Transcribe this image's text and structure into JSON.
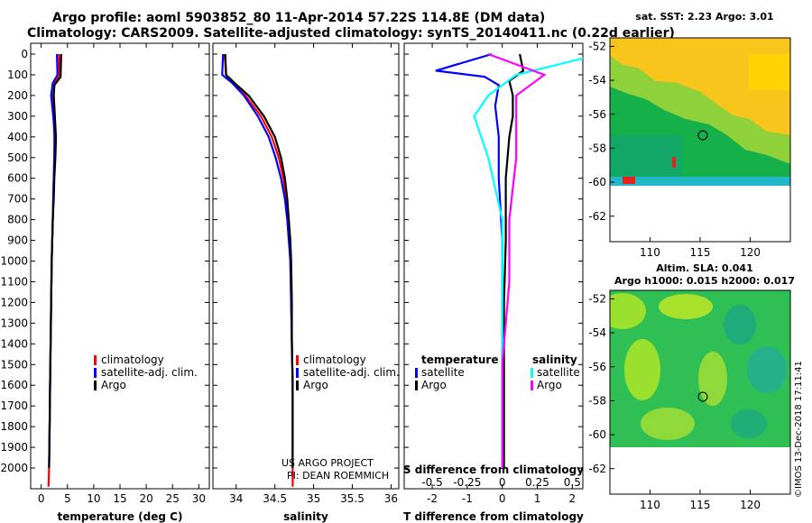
{
  "title": {
    "line1": "Argo profile: aoml 5903852_80 11-Apr-2014 57.22S 114.8E (DM data)",
    "line2": "Climatology: CARS2009. Satellite-adjusted climatology: synTS_20140411.nc (0.22d earlier)"
  },
  "colors": {
    "climatology": "#ff0000",
    "satellite": "#0000ff",
    "argo": "#000000",
    "sal_satellite": "#00ffff",
    "sal_argo": "#ff00ff"
  },
  "legend": {
    "climatology": "climatology",
    "satellite_adj": "satellite-adj. clim.",
    "argo": "Argo"
  },
  "diff_legend": {
    "t_head": "temperature",
    "s_head": "salinity",
    "satellite": "satellite",
    "argo": "Argo"
  },
  "credit": {
    "line1": "US ARGO PROJECT",
    "line2": "PI: DEAN ROEMMICH"
  },
  "watermark": "©IMOS 13-Dec-2018 17:11:41",
  "chart_data": [
    {
      "type": "line",
      "name": "temperature",
      "xlabel": "temperature (deg C)",
      "xlim": [
        -2,
        32
      ],
      "xticks": [
        0,
        5,
        10,
        15,
        20,
        25,
        30
      ],
      "ylim": [
        0,
        2100
      ],
      "yticks": [
        0,
        100,
        200,
        300,
        400,
        500,
        600,
        700,
        800,
        900,
        1000,
        1100,
        1200,
        1300,
        1400,
        1500,
        1600,
        1700,
        1800,
        1900,
        2000
      ],
      "series": [
        {
          "name": "climatology",
          "x": [
            3.4,
            3.4,
            2.6,
            2.3,
            2.4,
            2.5,
            2.5,
            2.4,
            2.3,
            2.2,
            2.1,
            2.0,
            1.9,
            1.8,
            1.7,
            1.6,
            1.5,
            1.4
          ],
          "y": [
            0,
            100,
            140,
            200,
            300,
            400,
            500,
            600,
            700,
            800,
            900,
            1000,
            1200,
            1400,
            1600,
            1800,
            2000,
            2090
          ]
        },
        {
          "name": "satellite-adj. clim.",
          "x": [
            3.0,
            3.1,
            2.2,
            1.9,
            2.3,
            2.6,
            2.5,
            2.4,
            2.3,
            2.2,
            2.1,
            2.0,
            1.9,
            1.8,
            1.7,
            1.6,
            1.5
          ],
          "y": [
            0,
            100,
            140,
            200,
            300,
            400,
            500,
            600,
            700,
            800,
            900,
            1000,
            1200,
            1400,
            1600,
            1800,
            2000
          ]
        },
        {
          "name": "Argo",
          "x": [
            3.8,
            3.7,
            2.5,
            2.4,
            2.6,
            2.8,
            2.7,
            2.5,
            2.4,
            2.2,
            2.1,
            2.0,
            1.9,
            1.8,
            1.7,
            1.6,
            1.5
          ],
          "y": [
            0,
            110,
            150,
            200,
            300,
            400,
            500,
            600,
            700,
            800,
            900,
            1000,
            1200,
            1400,
            1600,
            1800,
            2000
          ]
        }
      ]
    },
    {
      "type": "line",
      "name": "salinity",
      "xlabel": "salinity",
      "xlim": [
        33.7,
        36.1
      ],
      "xticks": [
        34,
        34.5,
        35,
        35.5,
        36
      ],
      "ylim": [
        0,
        2100
      ],
      "series": [
        {
          "name": "climatology",
          "x": [
            33.85,
            33.87,
            33.95,
            34.12,
            34.32,
            34.46,
            34.55,
            34.61,
            34.65,
            34.68,
            34.69,
            34.7,
            34.71,
            34.72,
            34.73,
            34.73,
            34.73,
            34.73
          ],
          "y": [
            0,
            100,
            140,
            200,
            300,
            400,
            500,
            600,
            700,
            800,
            900,
            1000,
            1200,
            1400,
            1600,
            1800,
            2000,
            2090
          ]
        },
        {
          "name": "satellite-adj. clim.",
          "x": [
            33.83,
            33.82,
            33.95,
            34.1,
            34.28,
            34.42,
            34.51,
            34.58,
            34.63,
            34.66,
            34.68,
            34.7,
            34.71,
            34.72,
            34.73,
            34.73,
            34.73
          ],
          "y": [
            0,
            100,
            140,
            200,
            300,
            400,
            500,
            600,
            700,
            800,
            900,
            1000,
            1200,
            1400,
            1600,
            1800,
            2000
          ]
        },
        {
          "name": "Argo",
          "x": [
            33.86,
            33.87,
            33.98,
            34.16,
            34.36,
            34.5,
            34.58,
            34.63,
            34.66,
            34.68,
            34.7,
            34.71,
            34.72,
            34.72,
            34.73,
            34.73,
            34.73
          ],
          "y": [
            0,
            100,
            140,
            200,
            300,
            400,
            500,
            600,
            700,
            800,
            900,
            1000,
            1200,
            1400,
            1600,
            1800,
            2000
          ]
        }
      ]
    },
    {
      "type": "line",
      "name": "difference from climatology",
      "xlabel": "T difference from climatology",
      "xlim": [
        -2.8,
        2.3
      ],
      "xticks": [
        -2,
        -1,
        0,
        1,
        2
      ],
      "xticklabels": [
        "-2",
        "-1",
        "0",
        "1",
        "2"
      ],
      "secondary_xlabel": "S difference from climatology",
      "secondary_xticks": [
        -0.5,
        -0.25,
        0,
        0.25,
        0.5
      ],
      "secondary_xticklabels": [
        "-0.5",
        "-0.25",
        "0",
        "0.25",
        "0.5"
      ],
      "secondary_scale": 4,
      "ylim": [
        0,
        2100
      ],
      "series": [
        {
          "name": "T satellite",
          "x": [
            -0.3,
            -1.9,
            -0.5,
            -0.1,
            -0.2,
            -0.1,
            -0.1,
            0,
            0,
            0,
            0,
            0
          ],
          "y": [
            0,
            80,
            110,
            150,
            250,
            400,
            600,
            900,
            1200,
            1500,
            1800,
            2000
          ]
        },
        {
          "name": "T Argo",
          "x": [
            0.5,
            0.6,
            0.2,
            0.3,
            0.3,
            0.2,
            0.1,
            0.1,
            0.05,
            0.05,
            0.05,
            0.05
          ],
          "y": [
            0,
            80,
            130,
            200,
            300,
            400,
            600,
            900,
            1200,
            1500,
            1800,
            2000
          ]
        },
        {
          "name": "S satellite",
          "x": [
            0.7,
            0.1,
            -0.1,
            -0.2,
            -0.1,
            0,
            0,
            0,
            0
          ],
          "y": [
            0,
            100,
            200,
            300,
            500,
            800,
            1100,
            1500,
            2000
          ]
        },
        {
          "name": "S Argo",
          "x": [
            -0.1,
            0.3,
            0.1,
            0.1,
            0.1,
            0.05,
            0.05,
            0,
            0
          ],
          "y": [
            0,
            100,
            200,
            300,
            500,
            800,
            1100,
            1500,
            2000
          ]
        }
      ]
    },
    {
      "type": "heatmap",
      "name": "sst map",
      "title": "sat. SST: 2.23 Argo: 3.01",
      "xticks": [
        110,
        115,
        120
      ],
      "yticks": [
        -52,
        -54,
        -56,
        -58,
        -60,
        -62
      ],
      "xlim": [
        106,
        124
      ],
      "ylim": [
        -63.5,
        -51.5
      ],
      "marker": {
        "lon": 114.8,
        "lat": -57.22
      }
    },
    {
      "type": "heatmap",
      "name": "sla map",
      "title_line1": "Altim. SLA: 0.041",
      "title_line2": "Argo h1000: 0.015 h2000: 0.017",
      "xticks": [
        110,
        115,
        120
      ],
      "yticks": [
        -52,
        -54,
        -56,
        -58,
        -60,
        -62
      ],
      "xlim": [
        106,
        124
      ],
      "ylim": [
        -63.5,
        -51.5
      ],
      "marker": {
        "lon": 114.8,
        "lat": -57.22
      }
    }
  ]
}
